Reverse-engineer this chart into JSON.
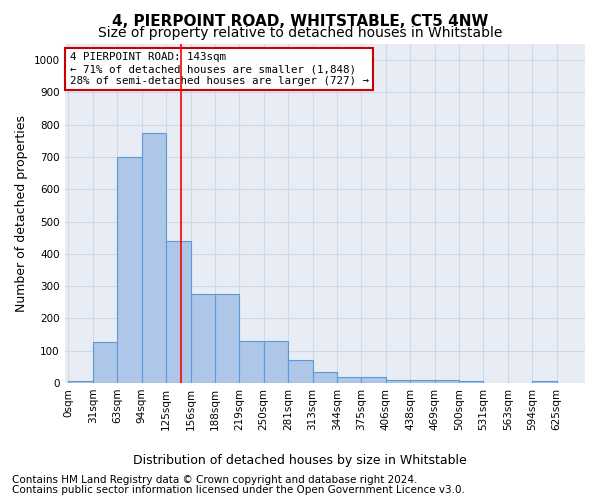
{
  "title1": "4, PIERPOINT ROAD, WHITSTABLE, CT5 4NW",
  "title2": "Size of property relative to detached houses in Whitstable",
  "xlabel": "Distribution of detached houses by size in Whitstable",
  "ylabel": "Number of detached properties",
  "footer1": "Contains HM Land Registry data © Crown copyright and database right 2024.",
  "footer2": "Contains public sector information licensed under the Open Government Licence v3.0.",
  "annotation_line1": "4 PIERPOINT ROAD: 143sqm",
  "annotation_line2": "← 71% of detached houses are smaller (1,848)",
  "annotation_line3": "28% of semi-detached houses are larger (727) →",
  "bar_values": [
    5,
    127,
    700,
    775,
    440,
    275,
    275,
    130,
    130,
    70,
    35,
    20,
    20,
    10,
    10,
    10,
    5,
    0,
    0,
    5,
    0
  ],
  "bin_labels": [
    "0sqm",
    "31sqm",
    "63sqm",
    "94sqm",
    "125sqm",
    "156sqm",
    "188sqm",
    "219sqm",
    "250sqm",
    "281sqm",
    "313sqm",
    "344sqm",
    "375sqm",
    "406sqm",
    "438sqm",
    "469sqm",
    "500sqm",
    "531sqm",
    "563sqm",
    "594sqm",
    "625sqm"
  ],
  "bar_color": "#aec6e8",
  "bar_edge_color": "#5b9bd5",
  "grid_color": "#d0d8e8",
  "background_color": "#e8edf5",
  "red_line_x": 143,
  "ylim": [
    0,
    1050
  ],
  "annotation_box_color": "#ffffff",
  "annotation_box_edge": "#cc0000",
  "title_fontsize": 11,
  "subtitle_fontsize": 10,
  "axis_label_fontsize": 9,
  "tick_fontsize": 7.5,
  "footer_fontsize": 7.5
}
